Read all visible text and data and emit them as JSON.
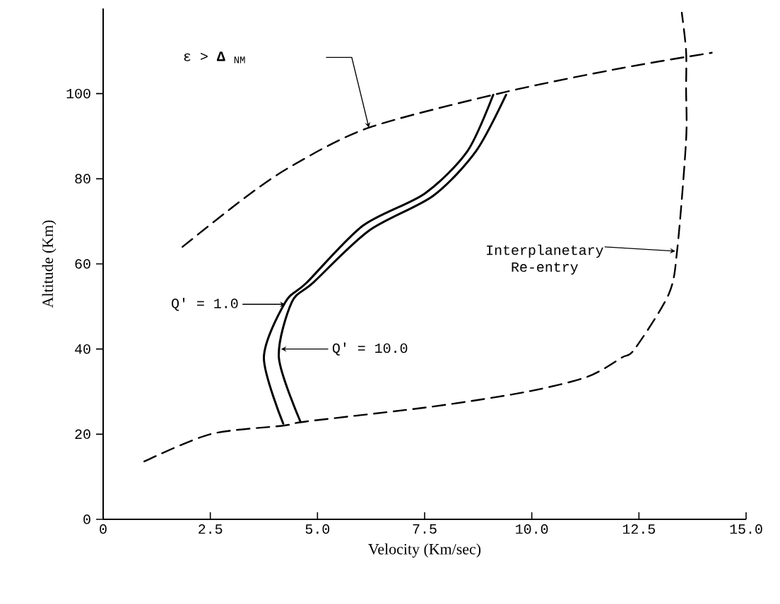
{
  "chart_data": {
    "type": "line",
    "xlabel": "Velocity (Km/sec)",
    "ylabel": "Altitude (Km)",
    "xlim": [
      0,
      15
    ],
    "ylim": [
      0,
      120
    ],
    "xticks": [
      0,
      2.5,
      {
        "value": 5,
        "label": "5.0"
      },
      7.5,
      {
        "value": 10,
        "label": "10.0"
      },
      12.5,
      {
        "value": 15,
        "label": "15.0"
      }
    ],
    "yticks": [
      0,
      20,
      40,
      60,
      80,
      100
    ],
    "grid": false,
    "annotations": [
      "ε > **Δ** $_{NM}$",
      "Q' = 1.0",
      "Q' = 10.0",
      "Interplanetary Re-entry"
    ],
    "series": [
      {
        "color": "#000000",
        "line_style": "dashed",
        "x": [
          1.85,
          3.3,
          4.4,
          6.2,
          9.35,
          12.1,
          14.2
        ],
        "values": [
          64,
          75.5,
          83,
          92,
          100.3,
          106,
          109.6
        ]
      },
      {
        "color": "#000000",
        "line_style": "solid",
        "x": [
          4.2,
          3.75,
          4.25,
          4.75,
          6.05,
          7.5,
          8.5,
          9.1
        ],
        "values": [
          22.5,
          38,
          51,
          55.6,
          68.9,
          76.5,
          86.5,
          99.7
        ]
      },
      {
        "color": "#000000",
        "line_style": "solid",
        "x": [
          4.6,
          4.1,
          4.4,
          4.9,
          6.2,
          7.7,
          8.7,
          9.4
        ],
        "values": [
          23,
          38,
          51,
          55.6,
          67.8,
          76,
          86.5,
          99.7
        ]
      },
      {
        "color": "#000000",
        "line_style": "dashed",
        "x": [
          0.96,
          2.5,
          4.2,
          4.75,
          7.7,
          9.9,
          11.3,
          12.1,
          12.4,
          13.2,
          13.4,
          13.6,
          13.6,
          13.6,
          13.5
        ],
        "values": [
          13.6,
          20,
          22,
          23,
          26.5,
          30,
          33.5,
          38,
          40,
          53,
          64,
          89,
          101,
          110,
          119
        ]
      }
    ]
  }
}
